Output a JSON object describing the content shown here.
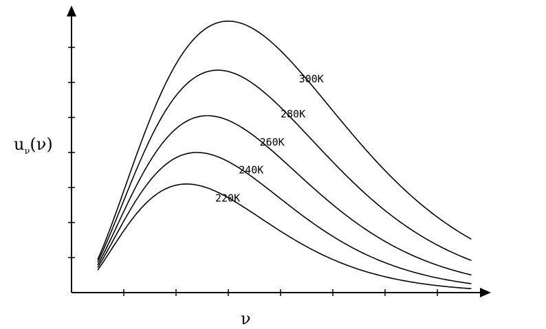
{
  "chart_data": {
    "type": "line",
    "ylabel": {
      "main": "u",
      "sub": "ν",
      "arg": "(ν)"
    },
    "xlabel": "ν",
    "xlim": [
      0,
      7.5
    ],
    "ylim": [
      0,
      8
    ],
    "x_ticks": [
      1,
      2,
      3,
      4,
      5,
      6,
      7
    ],
    "y_ticks": [
      1,
      2,
      3,
      4,
      5,
      6,
      7
    ],
    "x_range": [
      0.5,
      7.65
    ],
    "series": [
      {
        "name": "300K",
        "temperature": 300,
        "peak_x": 3.0,
        "peak_y": 7.75,
        "label": {
          "x": 4.35,
          "y": 6.0
        }
      },
      {
        "name": "280K",
        "temperature": 280,
        "peak_x": 2.8,
        "peak_y": 6.35,
        "label": {
          "x": 4.0,
          "y": 5.0
        }
      },
      {
        "name": "260K",
        "temperature": 260,
        "peak_x": 2.6,
        "peak_y": 5.05,
        "label": {
          "x": 3.6,
          "y": 4.2
        }
      },
      {
        "name": "240K",
        "temperature": 240,
        "peak_x": 2.4,
        "peak_y": 4.0,
        "label": {
          "x": 3.2,
          "y": 3.4
        }
      },
      {
        "name": "220K",
        "temperature": 220,
        "peak_x": 2.2,
        "peak_y": 3.1,
        "label": {
          "x": 2.75,
          "y": 2.6
        }
      }
    ]
  }
}
